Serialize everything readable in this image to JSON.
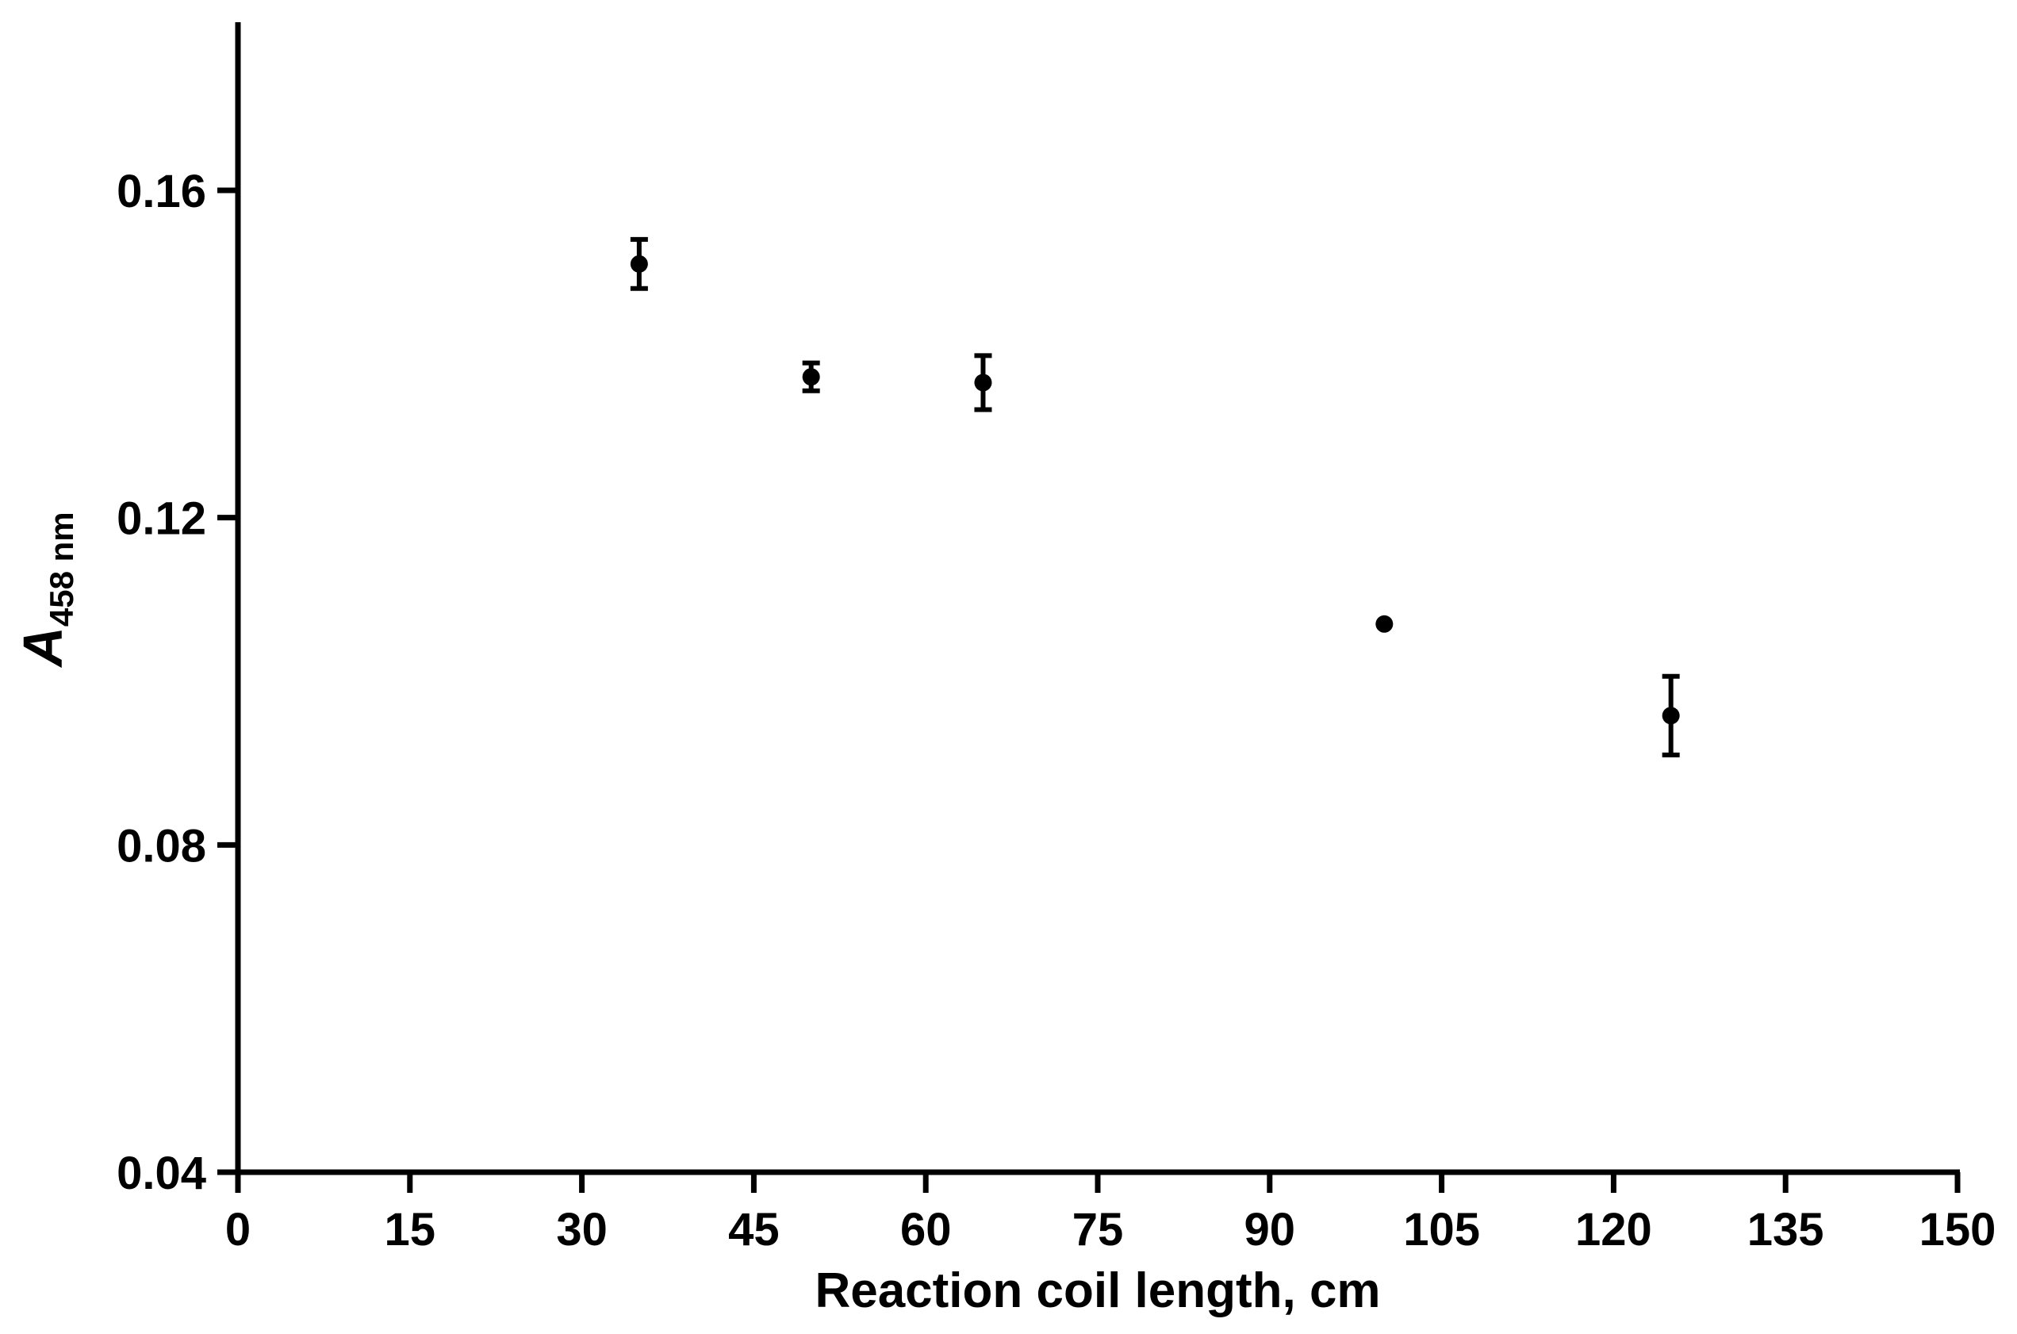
{
  "chart_data": {
    "type": "scatter",
    "xlabel": "Reaction coil length, cm",
    "ylabel": {
      "main": "A",
      "sub": "458 nm"
    },
    "xlim": [
      0,
      150
    ],
    "ylim": [
      0.04,
      0.18
    ],
    "xticks": [
      0,
      15,
      30,
      45,
      60,
      75,
      90,
      105,
      120,
      135,
      150
    ],
    "xtick_labels": [
      "0",
      "15",
      "30",
      "45",
      "60",
      "75",
      "90",
      "105",
      "120",
      "135",
      "150"
    ],
    "yticks": [
      0.04,
      0.08,
      0.12,
      0.16
    ],
    "ytick_labels": [
      "0.04",
      "0.08",
      "0.12",
      "0.16"
    ],
    "grid": false,
    "points": [
      {
        "x": 35,
        "y": 0.151,
        "err": 0.003
      },
      {
        "x": 50,
        "y": 0.1372,
        "err": 0.0017
      },
      {
        "x": 65,
        "y": 0.1365,
        "err": 0.0033
      },
      {
        "x": 100,
        "y": 0.107,
        "err": 0
      },
      {
        "x": 125,
        "y": 0.0958,
        "err": 0.0048
      }
    ]
  }
}
